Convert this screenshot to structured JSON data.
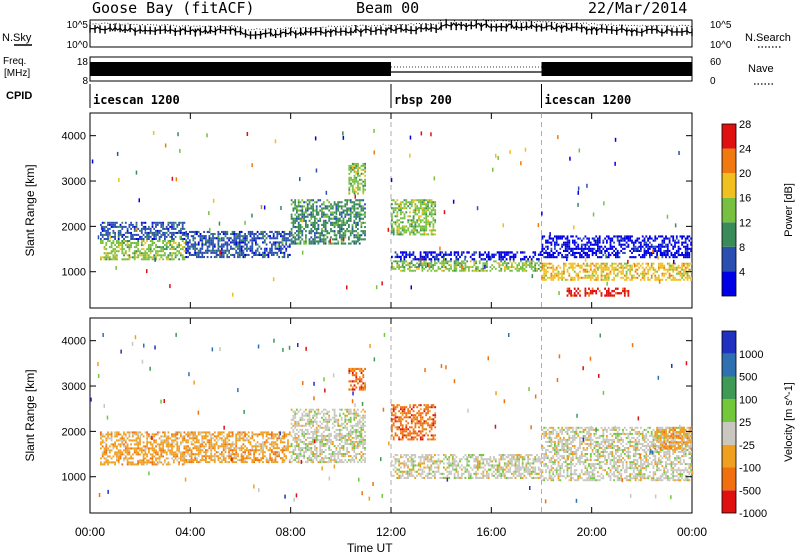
{
  "header": {
    "radar": "Goose Bay (fitACF)",
    "beam": "Beam 00",
    "date": "22/Mar/2014"
  },
  "strip": {
    "nsky_label": "N.Sky",
    "nsearch_label": "N.Search",
    "nsky_ticks": [
      "10^5",
      "10^0"
    ],
    "nsearch_ticks": [
      "10^5",
      "10^0"
    ],
    "freq_label_1": "Freq.",
    "freq_label_2": "[MHz]",
    "freq_ticks": [
      "18",
      "8"
    ],
    "nave_label": "Nave",
    "nave_ticks": [
      "60",
      "0"
    ],
    "cpid_label": "CPID",
    "cpid_segments": [
      {
        "label": "icescan 1200",
        "start_hour": 0
      },
      {
        "label": "rbsp 200",
        "start_hour": 12
      },
      {
        "label": "icescan 1200",
        "start_hour": 18
      }
    ]
  },
  "chart_data": [
    {
      "type": "heatmap",
      "title": "",
      "xlabel": "Time UT",
      "ylabel": "Slant Range [km]",
      "xlim": [
        0,
        24
      ],
      "ylim": [
        200,
        4500
      ],
      "xticks": [
        "00:00",
        "04:00",
        "08:00",
        "12:00",
        "16:00",
        "20:00",
        "00:00"
      ],
      "yticks": [
        1000,
        2000,
        3000,
        4000
      ],
      "colorbar": {
        "label": "Power [dB]",
        "ticks": [
          "4",
          "8",
          "12",
          "16",
          "20",
          "24",
          "28"
        ],
        "colors": [
          "#0000e6",
          "#2a4fb0",
          "#3b8a5a",
          "#78c040",
          "#f0c020",
          "#f07a10",
          "#e01010"
        ]
      },
      "bands": [
        {
          "t0": 0.4,
          "t1": 3.8,
          "r0": 1250,
          "r1": 1700,
          "level": 3
        },
        {
          "t0": 0.4,
          "t1": 3.8,
          "r0": 1700,
          "r1": 2100,
          "level": 1
        },
        {
          "t0": 3.8,
          "t1": 8.0,
          "r0": 1300,
          "r1": 1900,
          "level": 1
        },
        {
          "t0": 8.0,
          "t1": 11.0,
          "r0": 1600,
          "r1": 2600,
          "level": 2
        },
        {
          "t0": 10.3,
          "t1": 11.0,
          "r0": 2700,
          "r1": 3400,
          "level": 3
        },
        {
          "t0": 12.0,
          "t1": 18.0,
          "r0": 1000,
          "r1": 1250,
          "level": 3
        },
        {
          "t0": 12.0,
          "t1": 18.0,
          "r0": 1250,
          "r1": 1450,
          "level": 0
        },
        {
          "t0": 12.0,
          "t1": 13.8,
          "r0": 1800,
          "r1": 2600,
          "level": 3
        },
        {
          "t0": 18.0,
          "t1": 24.0,
          "r0": 1300,
          "r1": 1800,
          "level": 0
        },
        {
          "t0": 18.0,
          "t1": 24.0,
          "r0": 800,
          "r1": 1200,
          "level": 4
        },
        {
          "t0": 19.0,
          "t1": 21.5,
          "r0": 450,
          "r1": 650,
          "level": 6
        }
      ]
    },
    {
      "type": "heatmap",
      "title": "",
      "xlabel": "Time UT",
      "ylabel": "Slant Range [km]",
      "xlim": [
        0,
        24
      ],
      "ylim": [
        200,
        4500
      ],
      "xticks": [
        "00:00",
        "04:00",
        "08:00",
        "12:00",
        "16:00",
        "20:00",
        "00:00"
      ],
      "yticks": [
        1000,
        2000,
        3000,
        4000
      ],
      "colorbar": {
        "label": "Velocity [m s^-1]",
        "ticks": [
          "1000",
          "500",
          "100",
          "25",
          "-25",
          "-100",
          "-500",
          "-1000"
        ],
        "colors": [
          "#2030c0",
          "#2f70b0",
          "#3e9a55",
          "#72c83a",
          "#c8c8c0",
          "#f0a020",
          "#f07010",
          "#e01010"
        ]
      },
      "bands": [
        {
          "t0": 0.4,
          "t1": 3.8,
          "r0": 1250,
          "r1": 2000,
          "level": 5
        },
        {
          "t0": 3.8,
          "t1": 8.0,
          "r0": 1300,
          "r1": 2000,
          "level": 5
        },
        {
          "t0": 8.0,
          "t1": 11.0,
          "r0": 1300,
          "r1": 2500,
          "level": 4
        },
        {
          "t0": 10.3,
          "t1": 11.0,
          "r0": 2900,
          "r1": 3400,
          "level": 6
        },
        {
          "t0": 12.0,
          "t1": 18.0,
          "r0": 950,
          "r1": 1500,
          "level": 4
        },
        {
          "t0": 12.0,
          "t1": 13.8,
          "r0": 1800,
          "r1": 2600,
          "level": 6
        },
        {
          "t0": 18.0,
          "t1": 24.0,
          "r0": 900,
          "r1": 2100,
          "level": 4
        },
        {
          "t0": 22.5,
          "t1": 24.0,
          "r0": 1600,
          "r1": 2100,
          "level": 5
        }
      ]
    }
  ]
}
